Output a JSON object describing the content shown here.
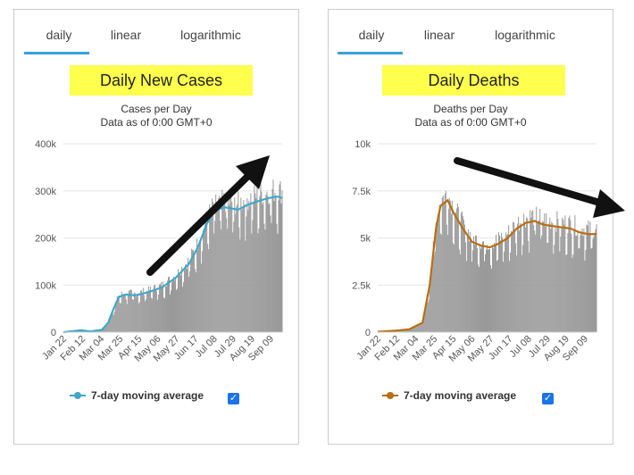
{
  "panels": [
    {
      "tabs": [
        "daily",
        "linear",
        "logarithmic"
      ],
      "active_tab": "daily",
      "title": "Daily New Cases",
      "subtitle": "Cases per Day",
      "data_asof": "Data as of 0:00 GMT+0",
      "legend_label": "7-day moving average",
      "legend_checked": true
    },
    {
      "tabs": [
        "daily",
        "linear",
        "logarithmic"
      ],
      "active_tab": "daily",
      "title": "Daily Deaths",
      "subtitle": "Deaths per Day",
      "data_asof": "Data as of 0:00 GMT+0",
      "legend_label": "7-day moving average",
      "legend_checked": true
    }
  ],
  "colors": {
    "tab_accent": "#38a3d8",
    "title_bg": "#ffff4d",
    "bars": "#999999",
    "cases_avg": "#3fa7c9",
    "deaths_avg": "#b86e12",
    "arrow": "#111111"
  },
  "chart_data": [
    {
      "type": "bar",
      "title": "Daily New Cases",
      "subtitle": "Cases per Day",
      "ylim": [
        0,
        400000
      ],
      "yticks": [
        0,
        100000,
        200000,
        300000,
        400000
      ],
      "ytick_labels": [
        "0",
        "100k",
        "200k",
        "300k",
        "400k"
      ],
      "xtick_labels": [
        "Jan 22",
        "Feb 12",
        "Mar 04",
        "Mar 25",
        "Apr 15",
        "May 06",
        "May 27",
        "Jun 17",
        "Jul 08",
        "Jul 29",
        "Aug 19",
        "Sep 09"
      ],
      "days": 245,
      "avg_keyframes": [
        [
          0,
          0
        ],
        [
          10,
          2000
        ],
        [
          20,
          4000
        ],
        [
          30,
          1500
        ],
        [
          43,
          5000
        ],
        [
          50,
          20000
        ],
        [
          56,
          50000
        ],
        [
          62,
          75000
        ],
        [
          70,
          80000
        ],
        [
          80,
          78000
        ],
        [
          95,
          85000
        ],
        [
          110,
          95000
        ],
        [
          125,
          115000
        ],
        [
          140,
          145000
        ],
        [
          150,
          180000
        ],
        [
          160,
          230000
        ],
        [
          168,
          258000
        ],
        [
          180,
          265000
        ],
        [
          195,
          260000
        ],
        [
          205,
          270000
        ],
        [
          220,
          280000
        ],
        [
          230,
          285000
        ],
        [
          238,
          288000
        ],
        [
          244,
          285000
        ]
      ],
      "series": [
        {
          "name": "7-day moving average"
        }
      ],
      "annotation": "up-arrow"
    },
    {
      "type": "bar",
      "title": "Daily Deaths",
      "subtitle": "Deaths per Day",
      "ylim": [
        0,
        10000
      ],
      "yticks": [
        0,
        2500,
        5000,
        7500,
        10000
      ],
      "ytick_labels": [
        "0",
        "2.5k",
        "5k",
        "7.5k",
        "10k"
      ],
      "xtick_labels": [
        "Jan 22",
        "Feb 12",
        "Mar 04",
        "Mar 25",
        "Apr 15",
        "May 06",
        "May 27",
        "Jun 17",
        "Jul 08",
        "Jul 29",
        "Aug 19",
        "Sep 09"
      ],
      "days": 245,
      "avg_keyframes": [
        [
          0,
          20
        ],
        [
          20,
          80
        ],
        [
          35,
          150
        ],
        [
          50,
          500
        ],
        [
          58,
          2500
        ],
        [
          65,
          5500
        ],
        [
          70,
          6700
        ],
        [
          78,
          7000
        ],
        [
          85,
          6300
        ],
        [
          95,
          5500
        ],
        [
          105,
          4800
        ],
        [
          115,
          4600
        ],
        [
          125,
          4500
        ],
        [
          135,
          4700
        ],
        [
          145,
          5000
        ],
        [
          155,
          5500
        ],
        [
          165,
          5800
        ],
        [
          175,
          5900
        ],
        [
          185,
          5700
        ],
        [
          200,
          5600
        ],
        [
          215,
          5500
        ],
        [
          225,
          5300
        ],
        [
          235,
          5200
        ],
        [
          244,
          5200
        ]
      ],
      "series": [
        {
          "name": "7-day moving average"
        }
      ],
      "annotation": "down-arrow"
    }
  ]
}
